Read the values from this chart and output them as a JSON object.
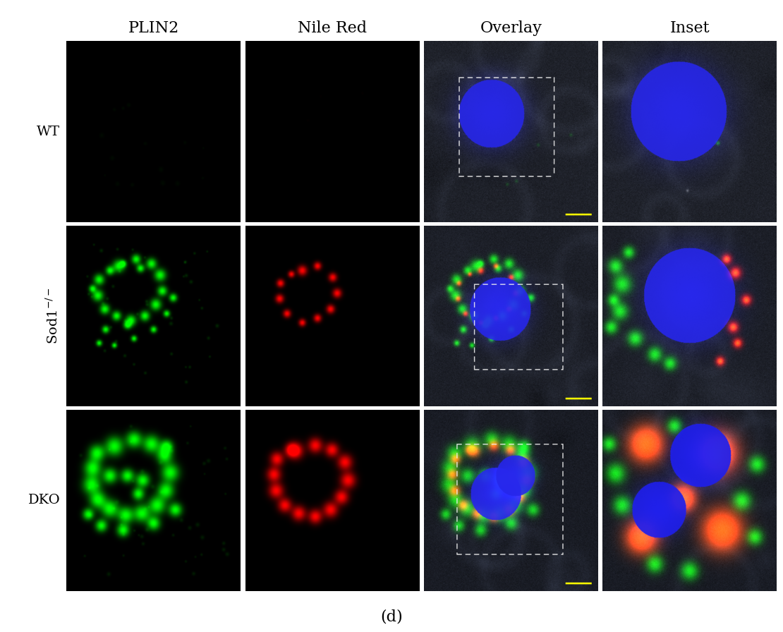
{
  "col_titles": [
    "PLIN2",
    "Nile Red",
    "Overlay",
    "Inset"
  ],
  "row_labels": [
    "WT",
    "Sod1⁻/⁻",
    "DKO"
  ],
  "panel_label": "(d)",
  "figure_bg": "#ffffff",
  "col_title_fontsize": 16,
  "row_label_fontsize": 14,
  "panel_label_fontsize": 16,
  "figsize": [
    11.1,
    8.96
  ],
  "dpi": 100
}
